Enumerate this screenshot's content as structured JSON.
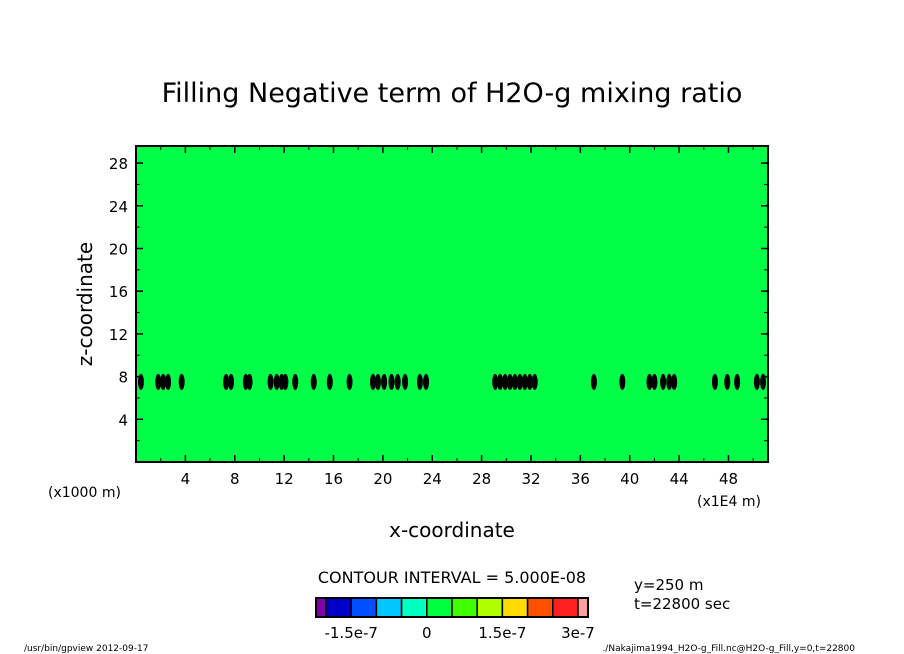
{
  "chart_data": {
    "type": "heatmap",
    "title": "Filling Negative term of H2O-g mixing ratio",
    "xlabel": "x-coordinate",
    "ylabel": "z-coordinate",
    "x_unit_label": "(x1E4 m)",
    "y_unit_label": "(x1000 m)",
    "xlim": [
      0,
      51.2
    ],
    "ylim": [
      0,
      29.6
    ],
    "xticks": [
      "4",
      "8",
      "12",
      "16",
      "20",
      "24",
      "28",
      "32",
      "36",
      "40",
      "44",
      "48"
    ],
    "xtick_values": [
      4,
      8,
      12,
      16,
      20,
      24,
      28,
      32,
      36,
      40,
      44,
      48
    ],
    "yticks": [
      "4",
      "8",
      "12",
      "16",
      "20",
      "24",
      "28"
    ],
    "ytick_values": [
      4,
      8,
      12,
      16,
      20,
      24,
      28
    ],
    "field_value": 0,
    "contour_band_z": 7.5,
    "contour_blob_x": [
      0.4,
      1.8,
      2.2,
      2.6,
      3.7,
      7.3,
      7.7,
      8.9,
      9.2,
      10.9,
      11.4,
      11.8,
      12.1,
      12.9,
      14.4,
      15.7,
      17.3,
      19.2,
      19.6,
      20.1,
      20.7,
      21.2,
      21.8,
      23.0,
      23.5,
      29.1,
      29.5,
      29.9,
      30.3,
      30.7,
      31.1,
      31.5,
      31.9,
      32.3,
      37.1,
      39.4,
      41.6,
      42.0,
      42.7,
      43.2,
      43.6,
      46.9,
      47.9,
      48.7,
      50.3,
      50.8
    ],
    "contour_interval": "CONTOUR INTERVAL = 5.000E-08",
    "colorbar": {
      "colors": [
        "#8000a8",
        "#0000c8",
        "#0050ff",
        "#00c8ff",
        "#00ffc0",
        "#00ff40",
        "#40ff00",
        "#b0ff00",
        "#ffdc00",
        "#ff5000",
        "#ff2020",
        "#ffa0a0"
      ],
      "tick_labels": [
        "-1.5e-7",
        "0",
        "1.5e-7",
        "3e-7"
      ],
      "tick_positions": [
        -1.5e-07,
        0,
        1.5e-07,
        3e-07
      ],
      "range": [
        -2.5e-07,
        3.5e-07
      ]
    },
    "fill_color": "#00ff46"
  },
  "info": {
    "y_label": "y=250 m",
    "t_label": "t=22800 sec"
  },
  "footer": {
    "left": "/usr/bin/gpview   2012-09-17",
    "right": "./Nakajima1994_H2O-g_Fill.nc@H2O-g_Fill,y=0,t=22800"
  }
}
